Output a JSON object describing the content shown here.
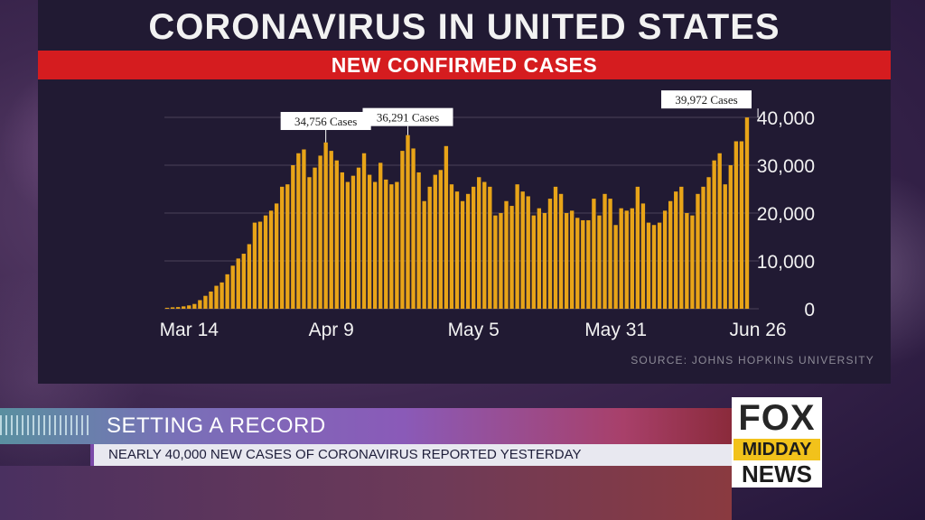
{
  "title": "CORONAVIRUS IN UNITED STATES",
  "subtitle": "NEW CONFIRMED CASES",
  "source": "SOURCE: JOHNS HOPKINS UNIVERSITY",
  "colors": {
    "bar": "#e8a418",
    "title_bar": "#d51c1f",
    "panel": "#211a33",
    "gridline": "#4a4358",
    "axis_text": "#f2f2f2"
  },
  "lower_third": {
    "headline": "SETTING A RECORD",
    "ticker": "NEARLY 40,000 NEW CASES OF CORONAVIRUS REPORTED YESTERDAY"
  },
  "logo": {
    "line1": "FOX",
    "line2": "MIDDAY",
    "line3": "NEWS"
  },
  "chart_data": {
    "type": "bar",
    "title": "NEW CONFIRMED CASES",
    "xlabel": "",
    "ylabel": "",
    "ylim": [
      0,
      40000
    ],
    "yticks": [
      0,
      10000,
      20000,
      30000,
      40000
    ],
    "ytick_labels": [
      "0",
      "10,000",
      "20,000",
      "30,000",
      "40,000"
    ],
    "y_axis_side": "right",
    "grid": true,
    "xtick_labels": [
      {
        "label": "Mar 14",
        "index": 4
      },
      {
        "label": "Apr 9",
        "index": 30
      },
      {
        "label": "May 5",
        "index": 56
      },
      {
        "label": "May 31",
        "index": 82
      },
      {
        "label": "Jun 26",
        "index": 108
      }
    ],
    "annotations": [
      {
        "label": "34,756 Cases",
        "index": 29,
        "value": 34756
      },
      {
        "label": "36,291 Cases",
        "index": 44,
        "value": 36291
      },
      {
        "label": "39,972 Cases",
        "index": 108,
        "value": 39972
      }
    ],
    "values": [
      200,
      300,
      350,
      500,
      700,
      1000,
      1800,
      2700,
      3600,
      4800,
      5500,
      7200,
      9000,
      10500,
      11500,
      13500,
      18000,
      18200,
      19500,
      20500,
      22000,
      25500,
      26000,
      30000,
      32500,
      33300,
      27500,
      29500,
      32000,
      34756,
      33000,
      31000,
      28500,
      26500,
      27800,
      29500,
      32500,
      28000,
      26500,
      30500,
      27000,
      26000,
      26500,
      33000,
      36291,
      33500,
      28500,
      22500,
      25500,
      28000,
      29000,
      34000,
      26000,
      24500,
      22500,
      24000,
      25500,
      27500,
      26500,
      25500,
      19500,
      20000,
      22500,
      21500,
      26000,
      24500,
      23500,
      19500,
      21000,
      20000,
      23000,
      25500,
      24000,
      20000,
      20500,
      19000,
      18500,
      18500,
      23000,
      19500,
      24000,
      23000,
      17500,
      21000,
      20500,
      21000,
      25500,
      22000,
      18000,
      17500,
      18000,
      20500,
      22500,
      24500,
      25500,
      20000,
      19500,
      24000,
      25500,
      27500,
      31000,
      32500,
      26000,
      30000,
      35000,
      35000,
      39972
    ]
  }
}
